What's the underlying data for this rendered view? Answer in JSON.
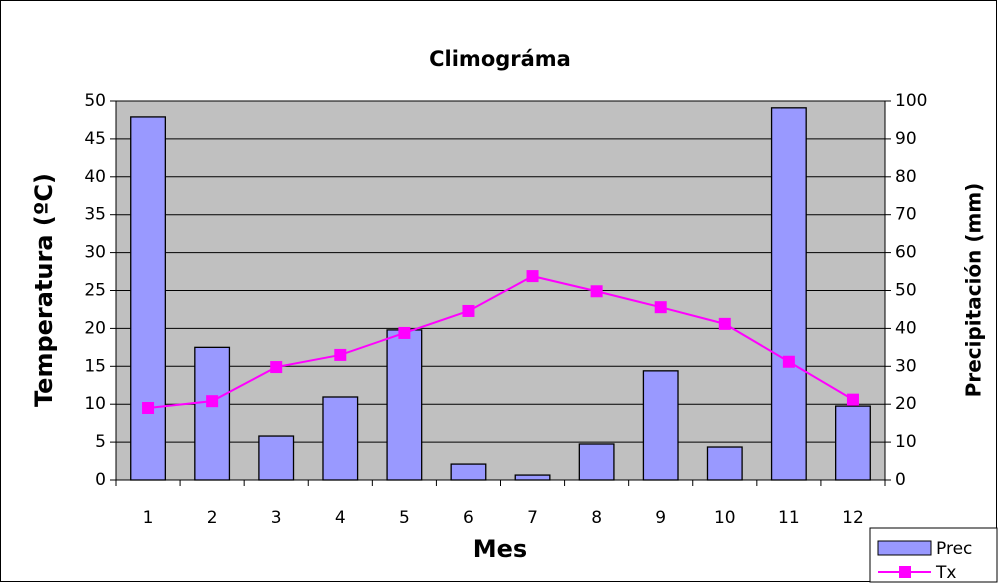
{
  "chart_data": {
    "type": "combo",
    "title": "Climográma",
    "x_label": "Mes",
    "y_label": "Temperatura (ºC)",
    "y2_label": "Precipitación (mm)",
    "categories": [
      "1",
      "2",
      "3",
      "4",
      "5",
      "6",
      "7",
      "8",
      "9",
      "10",
      "11",
      "12"
    ],
    "series": [
      {
        "name": "Prec",
        "type": "bar",
        "axis": "y2",
        "color": "#9999ff",
        "values": [
          95.8,
          35,
          11.6,
          21.9,
          39.6,
          4.2,
          1.3,
          9.5,
          28.8,
          8.7,
          98.2,
          19.5
        ]
      },
      {
        "name": "Tx",
        "type": "line",
        "color": "#ff00ff",
        "values": [
          9.5,
          10.4,
          14.9,
          16.5,
          19.4,
          22.3,
          26.9,
          24.9,
          22.8,
          20.6,
          15.6,
          10.6
        ]
      }
    ],
    "ylim": [
      0,
      50
    ],
    "yticks": [
      0,
      5,
      10,
      15,
      20,
      25,
      30,
      35,
      40,
      45,
      50
    ],
    "y2lim": [
      0,
      100
    ],
    "y2ticks": [
      0,
      10,
      20,
      30,
      40,
      50,
      60,
      70,
      80,
      90,
      100
    ],
    "grid": true,
    "plot_background": "#c0c0c0",
    "legend": "bottom-right"
  }
}
